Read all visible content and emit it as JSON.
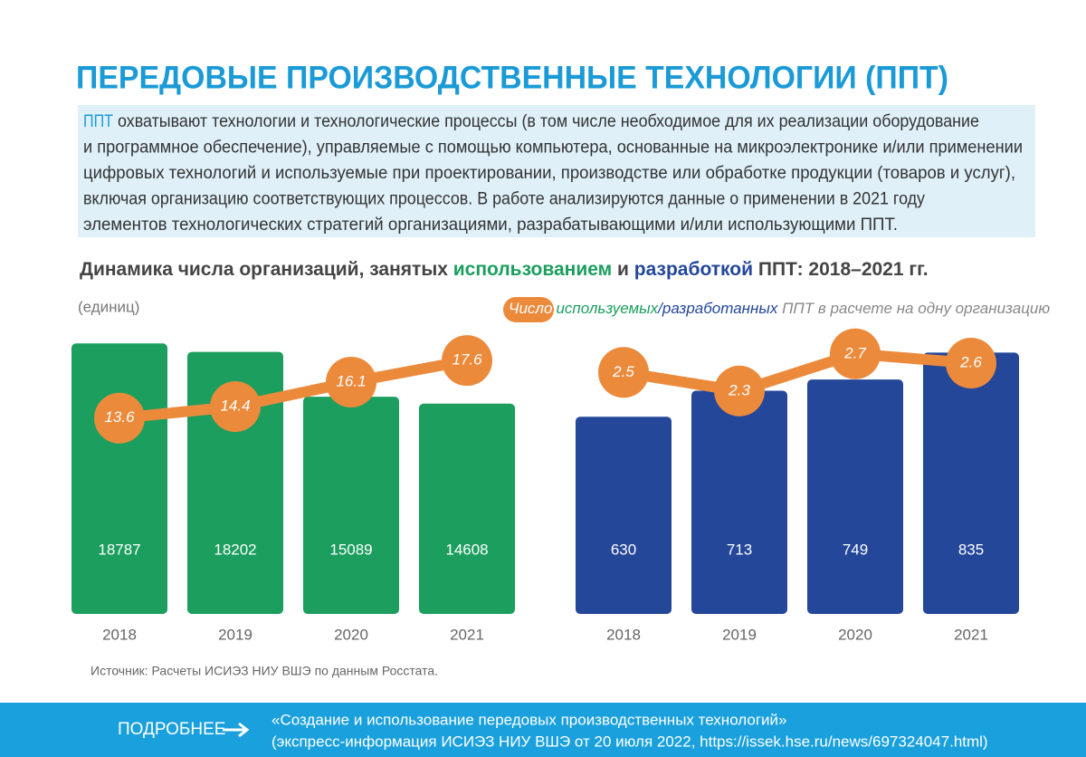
{
  "title": "ПЕРЕДОВЫЕ ПРОИЗВОДСТВЕННЫЕ ТЕХНОЛОГИИ (ППТ)",
  "description": {
    "term": "ППТ",
    "lines": [
      "охватывают технологии и технологические процессы (в том числе необходимое для их реализации оборудование",
      "и программное обеспечение), управляемые с помощью компьютера, основанные на микроэлектронике и/или применении",
      "цифровых технологий и используемые при проектировании, производстве или обработке продукции (товаров и услуг),",
      "включая организацию соответствующих процессов. В работе анализируются данные о применении в 2021 году",
      "элементов технологических стратегий организациями, разрабатывающими и/или использующими ППТ."
    ]
  },
  "subtitle": {
    "parts": [
      "Динамика числа организаций, занятых ",
      "использованием",
      " и ",
      "разработкой",
      "  ППТ: 2018–2021 гг."
    ]
  },
  "unit": "(единиц)",
  "line_legend": {
    "parts": [
      "Число",
      "используемых",
      "/",
      "разработанных",
      " ППТ в расчете на одну организацию"
    ]
  },
  "chart_data": [
    {
      "type": "bar",
      "categories": [
        "2018",
        "2019",
        "2020",
        "2021"
      ],
      "ylim": [
        0,
        20000
      ],
      "y2lim": [
        0,
        20
      ],
      "series": [
        {
          "type": "bar",
          "color": "#1b9e5e",
          "values": [
            18787,
            18202,
            15089,
            14608
          ]
        },
        {
          "type": "line",
          "axis": "y2",
          "color": "#ec8a3c",
          "values": [
            13.6,
            14.4,
            16.1,
            17.6
          ]
        }
      ]
    },
    {
      "type": "bar",
      "categories": [
        "2018",
        "2019",
        "2020",
        "2021"
      ],
      "ylim": [
        0,
        920
      ],
      "y2lim": [
        -0.1,
        3
      ],
      "series": [
        {
          "type": "bar",
          "color": "#24479a",
          "values": [
            630,
            713,
            749,
            835
          ]
        },
        {
          "type": "line",
          "axis": "y2",
          "color": "#ec8a3c",
          "values": [
            2.5,
            2.3,
            2.7,
            2.6
          ]
        }
      ]
    }
  ],
  "source": "Источник: Расчеты ИСИЭЗ НИУ ВШЭ по данным Росстата.",
  "footer": {
    "label": "ПОДРОБНЕЕ",
    "lines": [
      "«Создание и использование передовых производственных технологий»",
      "(экспресс-информация ИСИЭЗ НИУ ВШЭ от 20 июля 2022, https://issek.hse.ru/news/697324047.html)"
    ]
  }
}
